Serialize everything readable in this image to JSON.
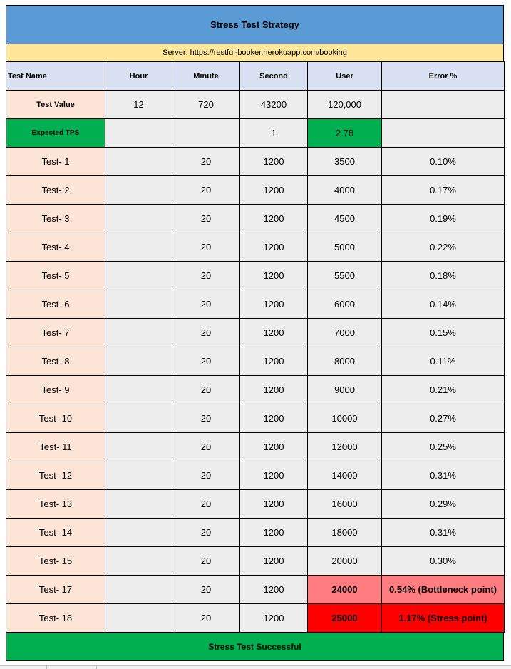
{
  "title": "Stress Test Strategy",
  "server": "Server: https://restful-booker.herokuapp.com/booking",
  "headers": [
    "Test Name",
    "Hour",
    "Minute",
    "Second",
    "User",
    "Error %"
  ],
  "test_value": {
    "name": "Test Value",
    "hour": "12",
    "minute": "720",
    "second": "43200",
    "user": "120,000",
    "error": ""
  },
  "expected_tps": {
    "name": "Expected TPS",
    "hour": "",
    "minute": "",
    "second": "1",
    "user": "2.78",
    "error": ""
  },
  "tests": [
    {
      "name": "Test- 1",
      "hour": "",
      "minute": "20",
      "second": "1200",
      "user": "3500",
      "error": "0.10%"
    },
    {
      "name": "Test- 2",
      "hour": "",
      "minute": "20",
      "second": "1200",
      "user": "4000",
      "error": "0.17%"
    },
    {
      "name": "Test- 3",
      "hour": "",
      "minute": "20",
      "second": "1200",
      "user": "4500",
      "error": "0.19%"
    },
    {
      "name": "Test- 4",
      "hour": "",
      "minute": "20",
      "second": "1200",
      "user": "5000",
      "error": "0.22%"
    },
    {
      "name": "Test- 5",
      "hour": "",
      "minute": "20",
      "second": "1200",
      "user": "5500",
      "error": "0.18%"
    },
    {
      "name": "Test- 6",
      "hour": "",
      "minute": "20",
      "second": "1200",
      "user": "6000",
      "error": "0.14%"
    },
    {
      "name": "Test- 7",
      "hour": "",
      "minute": "20",
      "second": "1200",
      "user": "7000",
      "error": "0.15%"
    },
    {
      "name": "Test- 8",
      "hour": "",
      "minute": "20",
      "second": "1200",
      "user": "8000",
      "error": "0.11%"
    },
    {
      "name": "Test- 9",
      "hour": "",
      "minute": "20",
      "second": "1200",
      "user": "9000",
      "error": "0.21%"
    },
    {
      "name": "Test- 10",
      "hour": "",
      "minute": "20",
      "second": "1200",
      "user": "10000",
      "error": "0.27%"
    },
    {
      "name": "Test- 11",
      "hour": "",
      "minute": "20",
      "second": "1200",
      "user": "12000",
      "error": "0.25%"
    },
    {
      "name": "Test- 12",
      "hour": "",
      "minute": "20",
      "second": "1200",
      "user": "14000",
      "error": "0.31%"
    },
    {
      "name": "Test- 13",
      "hour": "",
      "minute": "20",
      "second": "1200",
      "user": "16000",
      "error": "0.29%"
    },
    {
      "name": "Test- 14",
      "hour": "",
      "minute": "20",
      "second": "1200",
      "user": "18000",
      "error": "0.31%"
    },
    {
      "name": "Test- 15",
      "hour": "",
      "minute": "20",
      "second": "1200",
      "user": "20000",
      "error": "0.30%"
    },
    {
      "name": "Test- 17",
      "hour": "",
      "minute": "20",
      "second": "1200",
      "user": "24000",
      "error": "0.54% (Bottleneck point)"
    },
    {
      "name": "Test- 18",
      "hour": "",
      "minute": "20",
      "second": "1200",
      "user": "25000",
      "error": "1.17% (Stress point)"
    }
  ],
  "footer": "Stress Test Successful",
  "colors": {
    "title_bg": "#5b9bd5",
    "server_bg": "#ffe699",
    "header_bg": "#d9e1f2",
    "name_bg": "#fce4d6",
    "cell_bg": "#ededed",
    "green": "#00b050",
    "bottleneck": "#ff7c80",
    "stress": "#ff0000"
  }
}
